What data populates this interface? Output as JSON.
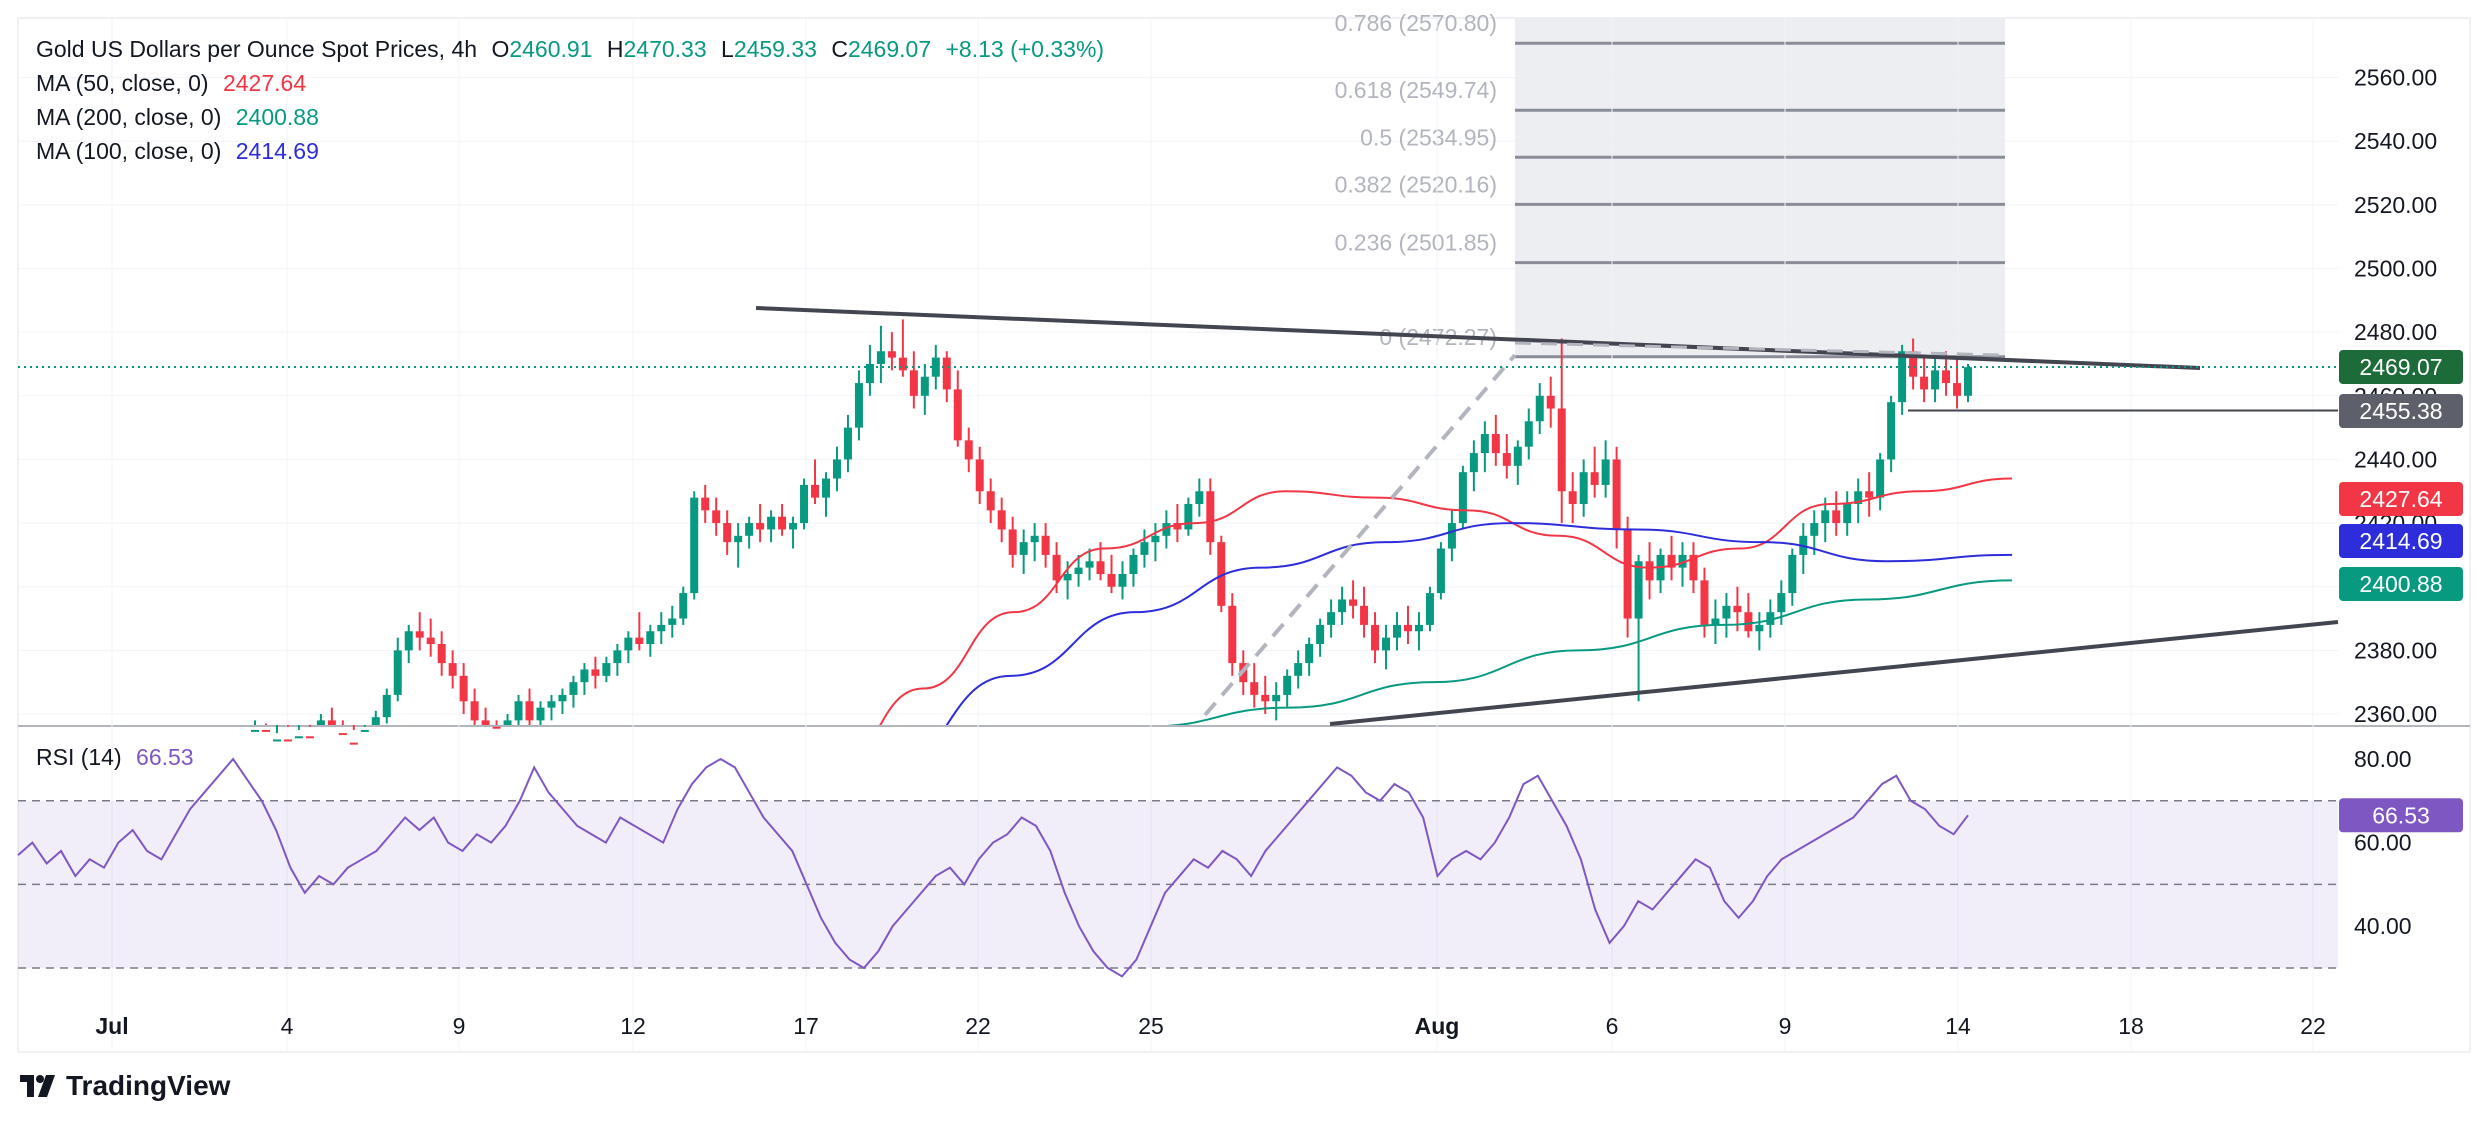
{
  "header": {
    "symbol_title": "Gold US Dollars per Ounce Spot Prices, 4h",
    "o_label": "O",
    "o_value": "2460.91",
    "h_label": "H",
    "h_value": "2470.33",
    "l_label": "L",
    "l_value": "2459.33",
    "c_label": "C",
    "c_value": "2469.07",
    "change": "+8.13 (+0.33%)"
  },
  "indicators": [
    {
      "label": "MA (50, close, 0)",
      "value": "2427.64",
      "color": "#f23645"
    },
    {
      "label": "MA (200, close, 0)",
      "value": "2400.88",
      "color": "#089981"
    },
    {
      "label": "MA (100, close, 0)",
      "value": "2414.69",
      "color": "#2d2ddb"
    }
  ],
  "rsi": {
    "label": "RSI (14)",
    "value": "66.53",
    "color": "#7e57c2"
  },
  "price_tags": [
    {
      "value": "2469.07",
      "bg": "#1e6b3a"
    },
    {
      "value": "2455.38",
      "bg": "#5d606b"
    },
    {
      "value": "2427.64",
      "bg": "#f23645"
    },
    {
      "value": "2414.69",
      "bg": "#2d2ddb"
    },
    {
      "value": "2400.88",
      "bg": "#089981"
    }
  ],
  "rsi_tag": {
    "value": "66.53",
    "bg": "#7e57c2"
  },
  "fibonacci": [
    {
      "label": "0.786 (2570.80)",
      "price": 2570.8
    },
    {
      "label": "0.618 (2549.74)",
      "price": 2549.74
    },
    {
      "label": "0.5 (2534.95)",
      "price": 2534.95
    },
    {
      "label": "0.382 (2520.16)",
      "price": 2520.16
    },
    {
      "label": "0.236 (2501.85)",
      "price": 2501.85
    },
    {
      "label": "0 (2472.27)",
      "price": 2472.27
    }
  ],
  "brand": {
    "name": "TradingView"
  },
  "chart_data": {
    "type": "candlestick",
    "colors": {
      "up": "#089981",
      "down": "#f23645",
      "ma50": "#f23645",
      "ma100": "#2d2ddb",
      "ma200": "#089981",
      "rsi": "#7e57c2"
    },
    "price_axis": {
      "ticks": [
        2360,
        2380,
        2400,
        2420,
        2440,
        2460,
        2480,
        2500,
        2520,
        2540,
        2560
      ],
      "tick_labels": [
        "2360.00",
        "2380.00",
        "2400.00",
        "2420.00",
        "2440.00",
        "2460.00",
        "2480.00",
        "2500.00",
        "2520.00",
        "2540.00",
        "2560.00"
      ]
    },
    "rsi_axis": {
      "ticks": [
        40,
        60,
        80
      ],
      "tick_labels": [
        "40.00",
        "60.00",
        "80.00"
      ],
      "bands": [
        30,
        50,
        70
      ]
    },
    "x_axis": {
      "ticks": [
        "Jul",
        "4",
        "9",
        "12",
        "17",
        "22",
        "25",
        "Aug",
        "6",
        "9",
        "14",
        "18",
        "22"
      ]
    },
    "candles": [
      [
        2347,
        2358,
        2345,
        2355
      ],
      [
        2355,
        2357,
        2349,
        2351
      ],
      [
        2351,
        2354,
        2347,
        2352
      ],
      [
        2352,
        2356,
        2348,
        2349
      ],
      [
        2349,
        2355,
        2346,
        2353
      ],
      [
        2353,
        2356,
        2350,
        2352
      ],
      [
        2352,
        2360,
        2350,
        2358
      ],
      [
        2358,
        2362,
        2352,
        2354
      ],
      [
        2354,
        2358,
        2349,
        2351
      ],
      [
        2351,
        2355,
        2346,
        2350
      ],
      [
        2350,
        2356,
        2348,
        2355
      ],
      [
        2355,
        2361,
        2352,
        2359
      ],
      [
        2359,
        2368,
        2357,
        2366
      ],
      [
        2366,
        2384,
        2364,
        2380
      ],
      [
        2380,
        2388,
        2376,
        2386
      ],
      [
        2386,
        2392,
        2380,
        2384
      ],
      [
        2384,
        2390,
        2378,
        2382
      ],
      [
        2382,
        2386,
        2372,
        2376
      ],
      [
        2376,
        2380,
        2368,
        2372
      ],
      [
        2372,
        2376,
        2360,
        2364
      ],
      [
        2364,
        2368,
        2354,
        2358
      ],
      [
        2358,
        2362,
        2352,
        2356
      ],
      [
        2356,
        2358,
        2350,
        2354
      ],
      [
        2354,
        2360,
        2352,
        2358
      ],
      [
        2358,
        2366,
        2356,
        2364
      ],
      [
        2364,
        2368,
        2356,
        2358
      ],
      [
        2358,
        2364,
        2354,
        2362
      ],
      [
        2362,
        2366,
        2358,
        2364
      ],
      [
        2364,
        2368,
        2360,
        2366
      ],
      [
        2366,
        2372,
        2362,
        2370
      ],
      [
        2370,
        2376,
        2366,
        2374
      ],
      [
        2374,
        2378,
        2368,
        2372
      ],
      [
        2372,
        2378,
        2370,
        2376
      ],
      [
        2376,
        2382,
        2372,
        2380
      ],
      [
        2380,
        2386,
        2376,
        2384
      ],
      [
        2384,
        2392,
        2380,
        2382
      ],
      [
        2382,
        2388,
        2378,
        2386
      ],
      [
        2386,
        2392,
        2382,
        2388
      ],
      [
        2388,
        2394,
        2384,
        2390
      ],
      [
        2390,
        2400,
        2388,
        2398
      ],
      [
        2398,
        2430,
        2396,
        2428
      ],
      [
        2428,
        2432,
        2420,
        2424
      ],
      [
        2424,
        2428,
        2416,
        2420
      ],
      [
        2420,
        2424,
        2410,
        2414
      ],
      [
        2414,
        2420,
        2406,
        2416
      ],
      [
        2416,
        2422,
        2412,
        2420
      ],
      [
        2420,
        2426,
        2414,
        2418
      ],
      [
        2418,
        2424,
        2414,
        2422
      ],
      [
        2422,
        2426,
        2416,
        2418
      ],
      [
        2418,
        2422,
        2412,
        2420
      ],
      [
        2420,
        2434,
        2418,
        2432
      ],
      [
        2432,
        2440,
        2426,
        2428
      ],
      [
        2428,
        2436,
        2422,
        2434
      ],
      [
        2434,
        2444,
        2430,
        2440
      ],
      [
        2440,
        2454,
        2436,
        2450
      ],
      [
        2450,
        2468,
        2446,
        2464
      ],
      [
        2464,
        2476,
        2460,
        2470
      ],
      [
        2470,
        2482,
        2464,
        2474
      ],
      [
        2474,
        2480,
        2468,
        2472
      ],
      [
        2472,
        2484,
        2466,
        2468
      ],
      [
        2468,
        2474,
        2456,
        2460
      ],
      [
        2460,
        2470,
        2454,
        2466
      ],
      [
        2466,
        2476,
        2462,
        2472
      ],
      [
        2472,
        2474,
        2458,
        2462
      ],
      [
        2462,
        2468,
        2444,
        2446
      ],
      [
        2446,
        2450,
        2436,
        2440
      ],
      [
        2440,
        2444,
        2426,
        2430
      ],
      [
        2430,
        2434,
        2420,
        2424
      ],
      [
        2424,
        2428,
        2414,
        2418
      ],
      [
        2418,
        2422,
        2406,
        2410
      ],
      [
        2410,
        2418,
        2404,
        2414
      ],
      [
        2414,
        2420,
        2408,
        2416
      ],
      [
        2416,
        2420,
        2406,
        2410
      ],
      [
        2410,
        2414,
        2398,
        2402
      ],
      [
        2402,
        2408,
        2396,
        2404
      ],
      [
        2404,
        2410,
        2400,
        2406
      ],
      [
        2406,
        2412,
        2402,
        2408
      ],
      [
        2408,
        2414,
        2402,
        2404
      ],
      [
        2404,
        2410,
        2398,
        2400
      ],
      [
        2400,
        2408,
        2396,
        2404
      ],
      [
        2404,
        2412,
        2400,
        2410
      ],
      [
        2410,
        2418,
        2406,
        2414
      ],
      [
        2414,
        2420,
        2408,
        2416
      ],
      [
        2416,
        2424,
        2412,
        2420
      ],
      [
        2420,
        2426,
        2414,
        2418
      ],
      [
        2418,
        2428,
        2416,
        2426
      ],
      [
        2426,
        2434,
        2422,
        2430
      ],
      [
        2430,
        2434,
        2410,
        2414
      ],
      [
        2414,
        2416,
        2392,
        2394
      ],
      [
        2394,
        2398,
        2372,
        2376
      ],
      [
        2376,
        2380,
        2366,
        2370
      ],
      [
        2370,
        2376,
        2362,
        2366
      ],
      [
        2366,
        2372,
        2360,
        2364
      ],
      [
        2364,
        2370,
        2358,
        2366
      ],
      [
        2366,
        2374,
        2362,
        2372
      ],
      [
        2372,
        2380,
        2368,
        2376
      ],
      [
        2376,
        2384,
        2372,
        2382
      ],
      [
        2382,
        2390,
        2378,
        2388
      ],
      [
        2388,
        2396,
        2384,
        2392
      ],
      [
        2392,
        2400,
        2388,
        2396
      ],
      [
        2396,
        2402,
        2390,
        2394
      ],
      [
        2394,
        2400,
        2384,
        2388
      ],
      [
        2388,
        2392,
        2376,
        2380
      ],
      [
        2380,
        2388,
        2374,
        2384
      ],
      [
        2384,
        2392,
        2380,
        2388
      ],
      [
        2388,
        2394,
        2382,
        2386
      ],
      [
        2386,
        2392,
        2380,
        2388
      ],
      [
        2388,
        2400,
        2386,
        2398
      ],
      [
        2398,
        2414,
        2396,
        2412
      ],
      [
        2412,
        2424,
        2408,
        2420
      ],
      [
        2420,
        2438,
        2418,
        2436
      ],
      [
        2436,
        2446,
        2430,
        2442
      ],
      [
        2442,
        2452,
        2436,
        2448
      ],
      [
        2448,
        2454,
        2438,
        2442
      ],
      [
        2442,
        2448,
        2434,
        2438
      ],
      [
        2438,
        2446,
        2432,
        2444
      ],
      [
        2444,
        2456,
        2440,
        2452
      ],
      [
        2452,
        2464,
        2448,
        2460
      ],
      [
        2460,
        2466,
        2450,
        2456
      ],
      [
        2456,
        2478,
        2420,
        2430
      ],
      [
        2430,
        2436,
        2420,
        2426
      ],
      [
        2426,
        2440,
        2422,
        2436
      ],
      [
        2436,
        2444,
        2428,
        2432
      ],
      [
        2432,
        2446,
        2428,
        2440
      ],
      [
        2440,
        2444,
        2412,
        2418
      ],
      [
        2418,
        2422,
        2384,
        2390
      ],
      [
        2390,
        2410,
        2364,
        2408
      ],
      [
        2408,
        2414,
        2396,
        2402
      ],
      [
        2402,
        2412,
        2398,
        2410
      ],
      [
        2410,
        2416,
        2402,
        2406
      ],
      [
        2406,
        2414,
        2400,
        2410
      ],
      [
        2410,
        2414,
        2398,
        2402
      ],
      [
        2402,
        2406,
        2384,
        2388
      ],
      [
        2388,
        2396,
        2382,
        2390
      ],
      [
        2390,
        2398,
        2384,
        2394
      ],
      [
        2394,
        2400,
        2386,
        2392
      ],
      [
        2392,
        2398,
        2384,
        2386
      ],
      [
        2386,
        2392,
        2380,
        2388
      ],
      [
        2388,
        2396,
        2384,
        2392
      ],
      [
        2392,
        2402,
        2388,
        2398
      ],
      [
        2398,
        2412,
        2394,
        2410
      ],
      [
        2410,
        2420,
        2404,
        2416
      ],
      [
        2416,
        2424,
        2410,
        2420
      ],
      [
        2420,
        2428,
        2414,
        2424
      ],
      [
        2424,
        2430,
        2416,
        2420
      ],
      [
        2420,
        2430,
        2416,
        2426
      ],
      [
        2426,
        2434,
        2420,
        2430
      ],
      [
        2430,
        2436,
        2422,
        2428
      ],
      [
        2428,
        2442,
        2424,
        2440
      ],
      [
        2440,
        2460,
        2436,
        2458
      ],
      [
        2458,
        2476,
        2454,
        2474
      ],
      [
        2474,
        2478,
        2462,
        2466
      ],
      [
        2466,
        2472,
        2458,
        2462
      ],
      [
        2462,
        2472,
        2458,
        2468
      ],
      [
        2468,
        2474,
        2460,
        2464
      ],
      [
        2464,
        2472,
        2456,
        2460
      ],
      [
        2460,
        2470,
        2458,
        2469
      ]
    ],
    "ma50": [
      2304,
      2312,
      2324,
      2342,
      2368,
      2392,
      2412,
      2420,
      2430,
      2428,
      2424,
      2416,
      2406,
      2412,
      2426,
      2430,
      2434
    ],
    "ma100": [
      2318,
      2342,
      2372,
      2392,
      2406,
      2414,
      2420,
      2418,
      2414,
      2408,
      2410
    ],
    "ma200": [
      2352,
      2356,
      2362,
      2370,
      2380,
      2388,
      2396,
      2402
    ],
    "trendlines": [
      {
        "from": [
          17,
          2487
        ],
        "to": [
          18.5,
          2470
        ]
      },
      {
        "from": [
          13,
          2349
        ],
        "to": [
          23,
          2390
        ]
      }
    ],
    "horizontal_levels": [
      2469.07,
      2455.38
    ],
    "rsi_values": [
      57,
      60,
      55,
      58,
      52,
      56,
      54,
      60,
      63,
      58,
      56,
      62,
      68,
      72,
      76,
      80,
      75,
      70,
      63,
      54,
      48,
      52,
      50,
      54,
      56,
      58,
      62,
      66,
      63,
      66,
      60,
      58,
      62,
      60,
      64,
      70,
      78,
      72,
      68,
      64,
      62,
      60,
      66,
      64,
      62,
      60,
      68,
      74,
      78,
      80,
      78,
      72,
      66,
      62,
      58,
      50,
      42,
      36,
      32,
      30,
      34,
      40,
      44,
      48,
      52,
      54,
      50,
      56,
      60,
      62,
      66,
      64,
      58,
      48,
      40,
      34,
      30,
      28,
      32,
      40,
      48,
      52,
      56,
      54,
      58,
      56,
      52,
      58,
      62,
      66,
      70,
      74,
      78,
      76,
      72,
      70,
      74,
      72,
      66,
      52,
      56,
      58,
      56,
      60,
      66,
      74,
      76,
      70,
      64,
      56,
      44,
      36,
      40,
      46,
      44,
      48,
      52,
      56,
      54,
      46,
      42,
      46,
      52,
      56,
      58,
      60,
      62,
      64,
      66,
      70,
      74,
      76,
      70,
      68,
      64,
      62,
      66.53
    ],
    "annotations": [
      "0.786 (2570.80)",
      "0.618 (2549.74)",
      "0.5 (2534.95)",
      "0.382 (2520.16)",
      "0.236 (2501.85)",
      "0 (2472.27)"
    ]
  }
}
